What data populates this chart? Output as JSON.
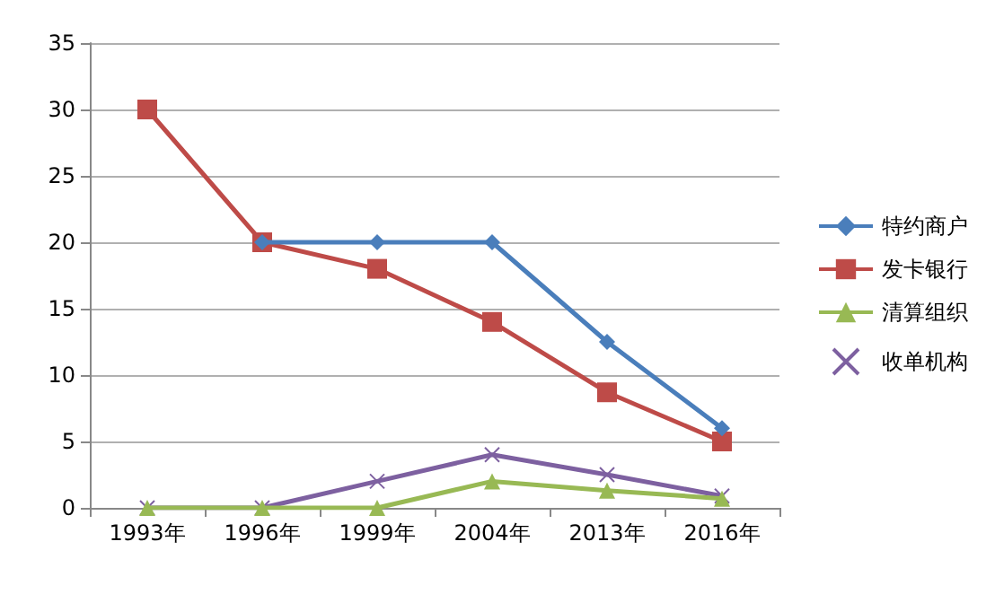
{
  "chart_data": {
    "type": "line",
    "categories": [
      "1993年",
      "1996年",
      "1999年",
      "2004年",
      "2013年",
      "2016年"
    ],
    "series": [
      {
        "name": "特约商户",
        "color": "#4a7ebb",
        "marker": "diamond",
        "values": [
          null,
          20,
          20,
          20,
          12.5,
          6
        ]
      },
      {
        "name": "发卡银行",
        "color": "#be4b48",
        "marker": "square",
        "values": [
          30,
          20,
          18,
          14,
          8.7,
          5
        ]
      },
      {
        "name": "清算组织",
        "color": "#98b954",
        "marker": "triangle",
        "values": [
          0,
          0,
          0,
          2,
          1.3,
          0.7
        ]
      },
      {
        "name": "收单机构",
        "color": "#7d60a0",
        "marker": "cross",
        "values": [
          0,
          0,
          2,
          4,
          2.5,
          0.9
        ]
      }
    ],
    "ylim": [
      0,
      35
    ],
    "yticks": [
      0,
      5,
      10,
      15,
      20,
      25,
      30,
      35
    ],
    "grid": "y",
    "legend": "right"
  }
}
